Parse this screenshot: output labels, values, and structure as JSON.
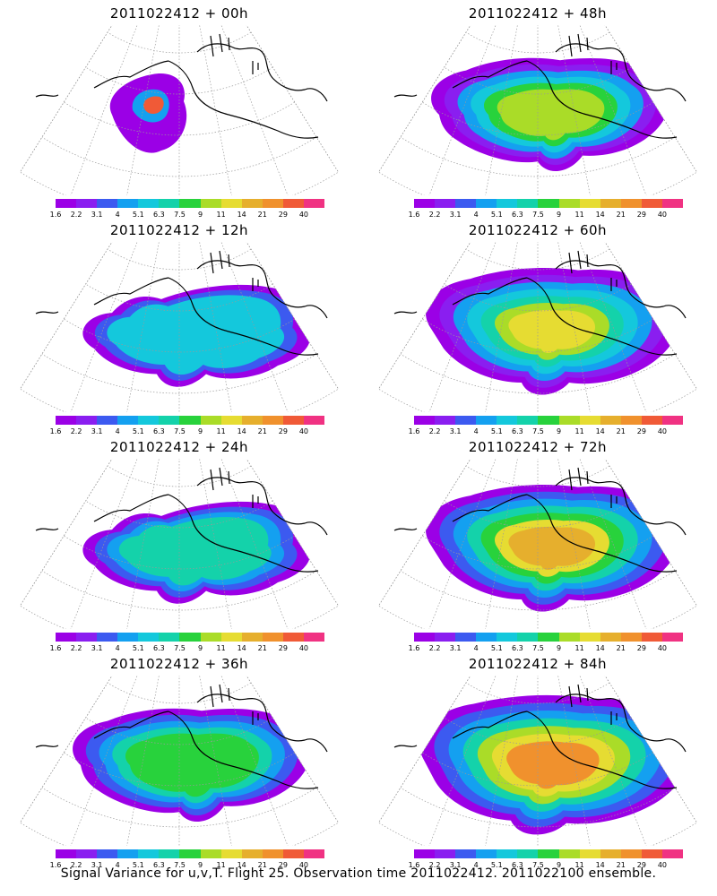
{
  "panels": [
    {
      "title": "2011022412 + 00h",
      "level": 0
    },
    {
      "title": "2011022412 + 48h",
      "level": 4
    },
    {
      "title": "2011022412 + 12h",
      "level": 1
    },
    {
      "title": "2011022412 + 60h",
      "level": 5
    },
    {
      "title": "2011022412 + 24h",
      "level": 2
    },
    {
      "title": "2011022412 + 72h",
      "level": 6
    },
    {
      "title": "2011022412 + 36h",
      "level": 3
    },
    {
      "title": "2011022412 + 84h",
      "level": 7
    }
  ],
  "colorbar": {
    "colors": [
      "#9b00e6",
      "#8a1ef0",
      "#3c5af0",
      "#14a0f0",
      "#14c8dc",
      "#14d2aa",
      "#28d23c",
      "#aadc28",
      "#e6dc32",
      "#e6af2d",
      "#f0912d",
      "#f05a37",
      "#f03282"
    ],
    "ticks": [
      "1.6",
      "2.2",
      "3.1",
      "4",
      "5.1",
      "6.3",
      "7.5",
      "9",
      "11",
      "14",
      "21",
      "29",
      "40"
    ]
  },
  "caption": "Signal Variance for u,v,T. Flight 25. Observation time 2011022412. 2011022100 ensemble."
}
